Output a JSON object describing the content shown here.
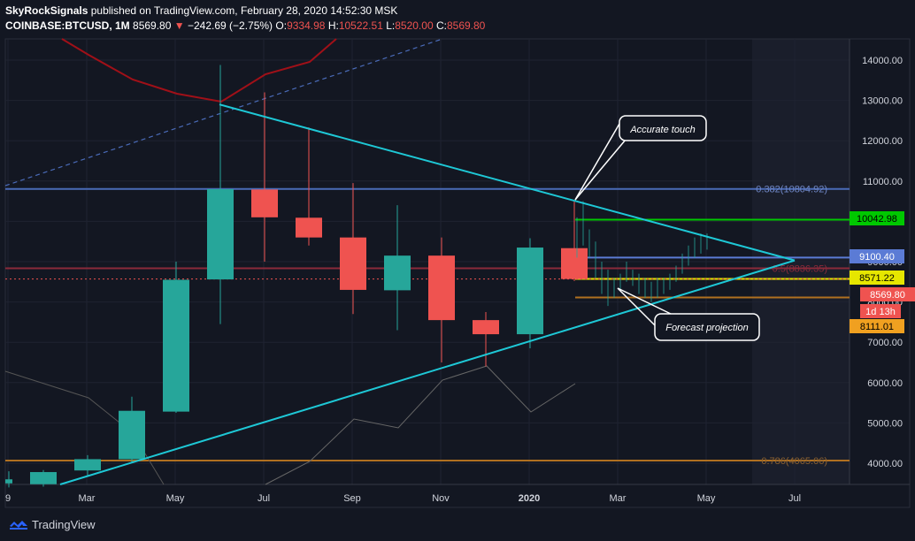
{
  "header": {
    "publisher": "SkyRockSignals",
    "published_text": "published on TradingView.com, February 28, 2020 14:52:30 MSK",
    "symbol": "COINBASE:BTCUSD, 1M",
    "last_price": "8569.80",
    "change_arrow": "▼",
    "change": "−242.69 (−2.75%)",
    "o_label": "O:",
    "o_value": "9334.98",
    "h_label": "H:",
    "h_value": "10522.51",
    "l_label": "L:",
    "l_value": "8520.00",
    "c_label": "C:",
    "c_value": "8569.80"
  },
  "footer": {
    "brand": "TradingView"
  },
  "annotations": {
    "accurate_touch": "Accurate touch",
    "forecast_projection": "Forecast projection"
  },
  "colors": {
    "background": "#131722",
    "bull": "#26a69a",
    "bear": "#ef5350",
    "triangle": "#1ec8d6",
    "fib": "#4a6bb8",
    "green_line": "#00c800",
    "yellow_line": "#e6e600",
    "orange_line": "#b07020"
  },
  "chart_data": {
    "type": "candlestick",
    "title": "COINBASE:BTCUSD, 1M",
    "ylim": [
      3500,
      14500
    ],
    "y_ticks": [
      "14000.00",
      "13000.00",
      "12000.00",
      "11000.00",
      "10000.00",
      "9000.00",
      "8000.00",
      "7000.00",
      "6000.00",
      "5000.00",
      "4000.00"
    ],
    "x_ticks": [
      "9",
      "Mar",
      "May",
      "Jul",
      "Sep",
      "Nov",
      "2020",
      "Mar",
      "May",
      "Jul"
    ],
    "monthly_candles": [
      {
        "o": 3500,
        "h": 3800,
        "l": 3400,
        "c": 3600
      },
      {
        "o": 3480,
        "h": 3830,
        "l": 3420,
        "c": 3780
      },
      {
        "o": 3820,
        "h": 4200,
        "l": 3700,
        "c": 4100
      },
      {
        "o": 4100,
        "h": 5650,
        "l": 4000,
        "c": 5300
      },
      {
        "o": 5280,
        "h": 9000,
        "l": 5250,
        "c": 8550
      },
      {
        "o": 8560,
        "h": 13880,
        "l": 7450,
        "c": 10800
      },
      {
        "o": 10790,
        "h": 13200,
        "l": 9000,
        "c": 10100
      },
      {
        "o": 10090,
        "h": 12330,
        "l": 9400,
        "c": 9600
      },
      {
        "o": 9600,
        "h": 10950,
        "l": 7700,
        "c": 8300
      },
      {
        "o": 8290,
        "h": 10400,
        "l": 7300,
        "c": 9150
      },
      {
        "o": 9150,
        "h": 9600,
        "l": 6500,
        "c": 7550
      },
      {
        "o": 7550,
        "h": 7750,
        "l": 6400,
        "c": 7200
      },
      {
        "o": 7200,
        "h": 9580,
        "l": 6850,
        "c": 9350
      },
      {
        "o": 9335,
        "h": 10523,
        "l": 8520,
        "c": 8570
      }
    ],
    "horizontal_levels": [
      {
        "label": "0.382(10804.92)",
        "value": 10804.92
      },
      {
        "label": "0.5(8836.35)",
        "value": 8836.35
      },
      {
        "label": "0.786(4065.06)",
        "value": 4065.06
      },
      {
        "label": "10042.98",
        "value": 10042.98
      },
      {
        "label": "8571.22",
        "value": 8571.22
      },
      {
        "label": "8111.01",
        "value": 8111.01
      }
    ],
    "price_labels": [
      {
        "text": "10042.98",
        "value": 10042.98
      },
      {
        "text": "9100.40",
        "value": 9100.4
      },
      {
        "text": "8571.22",
        "value": 8571.22
      },
      {
        "text": "8569.80",
        "value": 8569.8
      },
      {
        "text": "1d 13h",
        "value": 8300
      },
      {
        "text": "8111.01",
        "value": 8111.01
      }
    ],
    "triangle_upper": [
      {
        "month": 5,
        "price": 12900
      },
      {
        "month": 18,
        "price": 9030
      }
    ],
    "triangle_lower": [
      {
        "month": 0.5,
        "price": 3500
      },
      {
        "month": 18,
        "price": 9030
      }
    ]
  }
}
